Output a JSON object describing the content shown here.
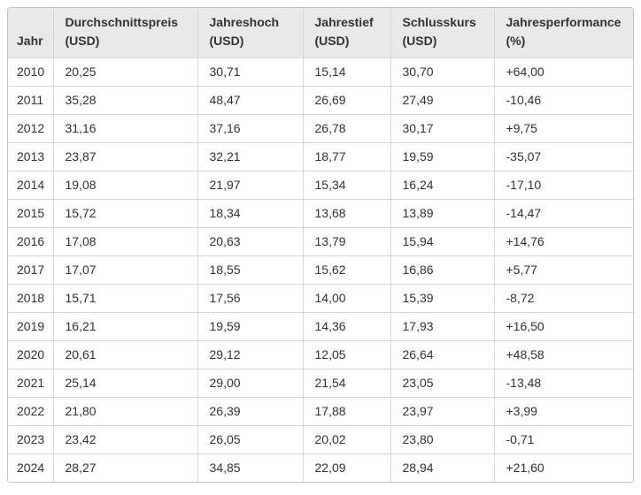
{
  "chart_data": {
    "type": "table",
    "columns": [
      {
        "label": "Jahr",
        "unit": ""
      },
      {
        "label": "Durchschnittspreis",
        "unit": "(USD)"
      },
      {
        "label": "Jahreshoch",
        "unit": "(USD)"
      },
      {
        "label": "Jahrestief",
        "unit": "(USD)"
      },
      {
        "label": "Schlusskurs",
        "unit": "(USD)"
      },
      {
        "label": "Jahresperformance",
        "unit": "(%)"
      }
    ],
    "rows": [
      [
        "2010",
        "20,25",
        "30,71",
        "15,14",
        "30,70",
        "+64,00"
      ],
      [
        "2011",
        "35,28",
        "48,47",
        "26,69",
        "27,49",
        "-10,46"
      ],
      [
        "2012",
        "31,16",
        "37,16",
        "26,78",
        "30,17",
        "+9,75"
      ],
      [
        "2013",
        "23,87",
        "32,21",
        "18,77",
        "19,59",
        "-35,07"
      ],
      [
        "2014",
        "19,08",
        "21,97",
        "15,34",
        "16,24",
        "-17,10"
      ],
      [
        "2015",
        "15,72",
        "18,34",
        "13,68",
        "13,89",
        "-14,47"
      ],
      [
        "2016",
        "17,08",
        "20,63",
        "13,79",
        "15,94",
        "+14,76"
      ],
      [
        "2017",
        "17,07",
        "18,55",
        "15,62",
        "16,86",
        "+5,77"
      ],
      [
        "2018",
        "15,71",
        "17,56",
        "14,00",
        "15,39",
        "-8,72"
      ],
      [
        "2019",
        "16,21",
        "19,59",
        "14,36",
        "17,93",
        "+16,50"
      ],
      [
        "2020",
        "20,61",
        "29,12",
        "12,05",
        "26,64",
        "+48,58"
      ],
      [
        "2021",
        "25,14",
        "29,00",
        "21,54",
        "23,05",
        "-13,48"
      ],
      [
        "2022",
        "21,80",
        "26,39",
        "17,88",
        "23,97",
        "+3,99"
      ],
      [
        "2023",
        "23,42",
        "26,05",
        "20,02",
        "23,80",
        "-0,71"
      ],
      [
        "2024",
        "28,27",
        "34,85",
        "22,09",
        "28,94",
        "+21,60"
      ]
    ]
  },
  "colors": {
    "header_bg": "#e9e9e9",
    "border": "#d6d6d6",
    "outer_border": "#c3c3c3",
    "text": "#333333"
  }
}
